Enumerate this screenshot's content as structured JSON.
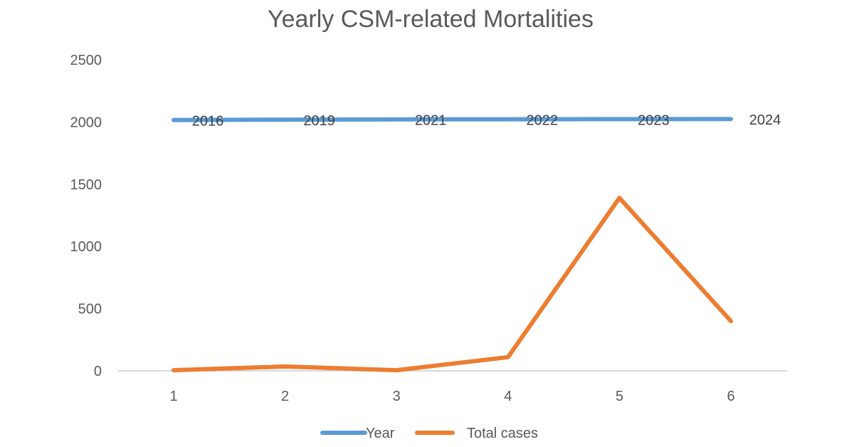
{
  "chart_data": {
    "type": "line",
    "title": "Yearly CSM-related Mortalities",
    "xlabel": "",
    "ylabel": "",
    "categories": [
      "1",
      "2",
      "3",
      "4",
      "5",
      "6"
    ],
    "ylim": [
      0,
      2500
    ],
    "yticks": [
      "0",
      "500",
      "1000",
      "1500",
      "2000",
      "2500"
    ],
    "grid": false,
    "legend_position": "bottom",
    "series": [
      {
        "name": "Year",
        "color": "#5B9BD5",
        "values": [
          2016,
          2019,
          2021,
          2022,
          2023,
          2024
        ],
        "data_labels": [
          "2016",
          "2019",
          "2021",
          "2022",
          "2023",
          "2024"
        ]
      },
      {
        "name": "Total cases",
        "color": "#ED7D31",
        "values": [
          5,
          35,
          5,
          110,
          1390,
          400
        ]
      }
    ]
  }
}
